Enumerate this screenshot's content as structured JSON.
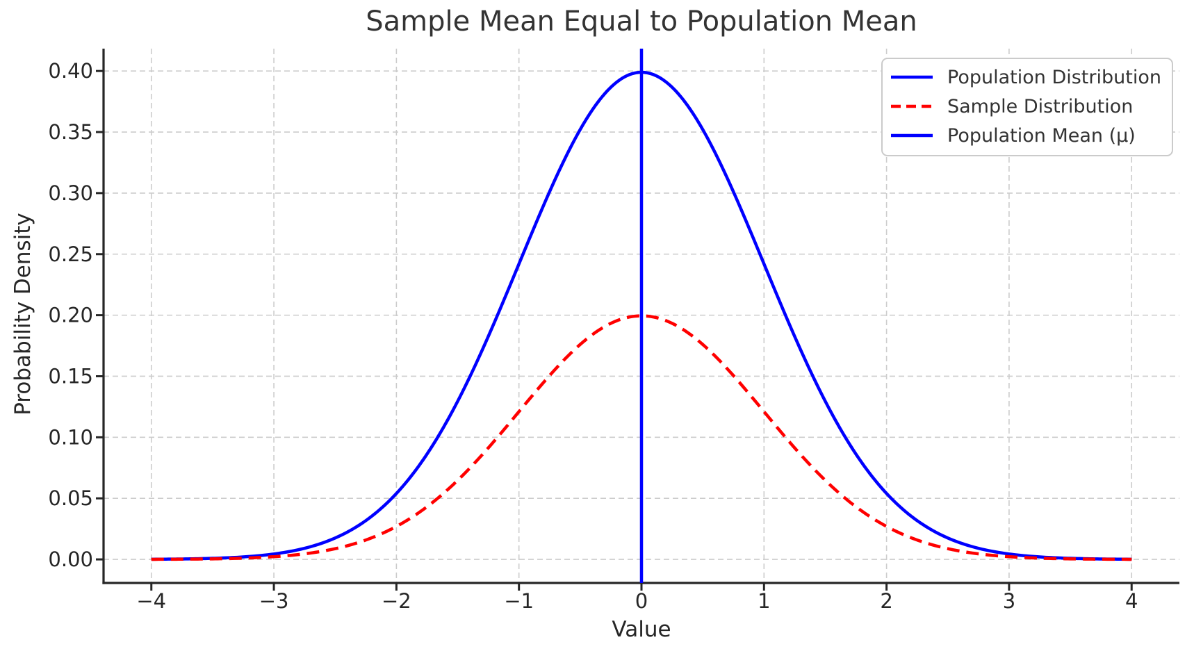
{
  "chart_data": {
    "type": "line",
    "title": "Sample Mean Equal to Population Mean",
    "xlabel": "Value",
    "ylabel": "Probability Density",
    "xlim": [
      -4.39,
      4.39
    ],
    "ylim": [
      -0.0193,
      0.4183
    ],
    "grid": {
      "visible": true,
      "style": "dashed",
      "color": "#cccccc"
    },
    "x_ticks": {
      "values": [
        -4,
        -3,
        -2,
        -1,
        0,
        1,
        2,
        3,
        4
      ],
      "labels": [
        "−4",
        "−3",
        "−2",
        "−1",
        "0",
        "1",
        "2",
        "3",
        "4"
      ]
    },
    "y_ticks": {
      "values": [
        0.0,
        0.05,
        0.1,
        0.15,
        0.2,
        0.25,
        0.3,
        0.35,
        0.4
      ],
      "labels": [
        "0.00",
        "0.05",
        "0.10",
        "0.15",
        "0.20",
        "0.25",
        "0.30",
        "0.35",
        "0.40"
      ]
    },
    "legend": {
      "position": "upper right"
    },
    "series": [
      {
        "name": "Population Distribution",
        "curve": "normal_pdf",
        "mu": 0,
        "sigma": 1,
        "scale": 1.0,
        "color": "#0000ff",
        "line_style": "solid",
        "line_width": 4.5,
        "x": [
          -4,
          -3.5,
          -3,
          -2.5,
          -2,
          -1.5,
          -1,
          -0.5,
          0,
          0.5,
          1,
          1.5,
          2,
          2.5,
          3,
          3.5,
          4
        ],
        "y": [
          0.0001,
          0.0009,
          0.0044,
          0.0175,
          0.054,
          0.1295,
          0.242,
          0.3521,
          0.3989,
          0.3521,
          0.242,
          0.1295,
          0.054,
          0.0175,
          0.0044,
          0.0009,
          0.0001
        ]
      },
      {
        "name": "Sample Distribution",
        "curve": "normal_pdf",
        "mu": 0,
        "sigma": 1,
        "scale": 0.5,
        "color": "#ff0000",
        "line_style": "dashed",
        "line_width": 4.5,
        "x": [
          -4,
          -3.5,
          -3,
          -2.5,
          -2,
          -1.5,
          -1,
          -0.5,
          0,
          0.5,
          1,
          1.5,
          2,
          2.5,
          3,
          3.5,
          4
        ],
        "y": [
          0.0001,
          0.0004,
          0.0022,
          0.0088,
          0.027,
          0.0648,
          0.121,
          0.176,
          0.1995,
          0.176,
          0.121,
          0.0648,
          0.027,
          0.0088,
          0.0022,
          0.0004,
          0.0001
        ]
      },
      {
        "name": "Population Mean (μ)",
        "curve": "vline",
        "x0": 0,
        "color": "#0000ff",
        "line_style": "solid",
        "line_width": 4.5
      }
    ],
    "colors": {
      "spine": "#262626",
      "tick_text": "#262626",
      "title_text": "#333333",
      "grid": "#cccccc",
      "legend_border": "#cbcbcb",
      "background": "#ffffff"
    }
  }
}
